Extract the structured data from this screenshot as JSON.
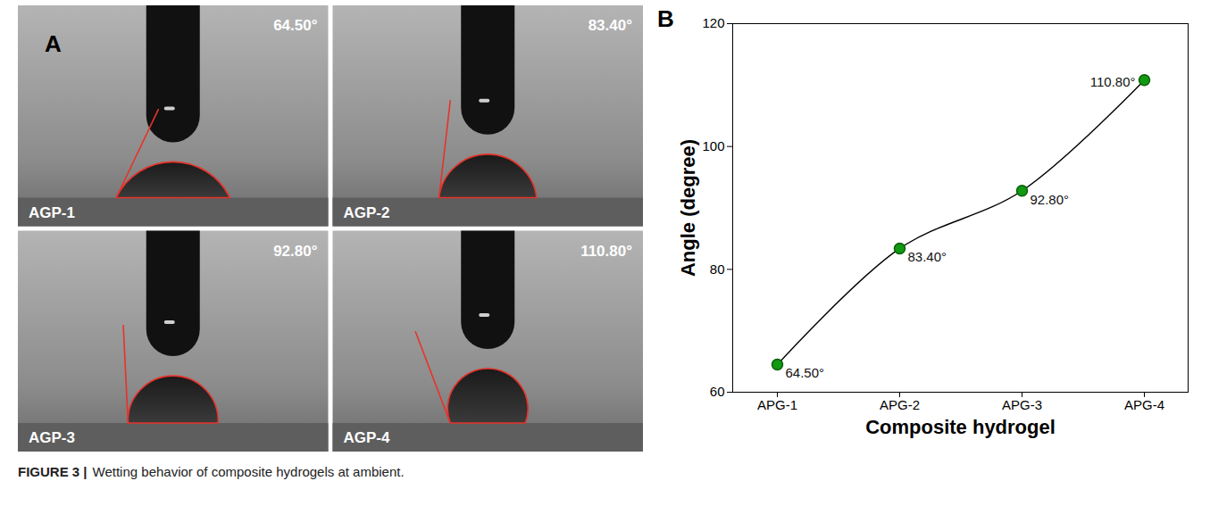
{
  "figure_label": "FIGURE 3 |",
  "caption": "Wetting behavior of composite hydrogels at ambient.",
  "panel_a": {
    "label": "A",
    "images": [
      {
        "sample": "AGP-1",
        "angle": 64.5,
        "angle_label": "64.50°"
      },
      {
        "sample": "AGP-2",
        "angle": 83.4,
        "angle_label": "83.40°"
      },
      {
        "sample": "AGP-3",
        "angle": 92.8,
        "angle_label": "92.80°"
      },
      {
        "sample": "AGP-4",
        "angle": 110.8,
        "angle_label": "110.80°"
      }
    ]
  },
  "chart_data": {
    "type": "line",
    "panel_label": "B",
    "x_label": "Composite hydrogel",
    "y_label": "Angle (degree)",
    "categories": [
      "APG-1",
      "APG-2",
      "APG-3",
      "APG-4"
    ],
    "values": [
      64.5,
      83.4,
      92.8,
      110.8
    ],
    "value_labels": [
      "64.50°",
      "83.40°",
      "92.80°",
      "110.80°"
    ],
    "color": "#119911",
    "marker": "circle",
    "line_style": "solid",
    "data_labels": true,
    "ylim": [
      60,
      120
    ],
    "yticks": [
      60,
      80,
      100,
      120
    ],
    "grid": false
  }
}
